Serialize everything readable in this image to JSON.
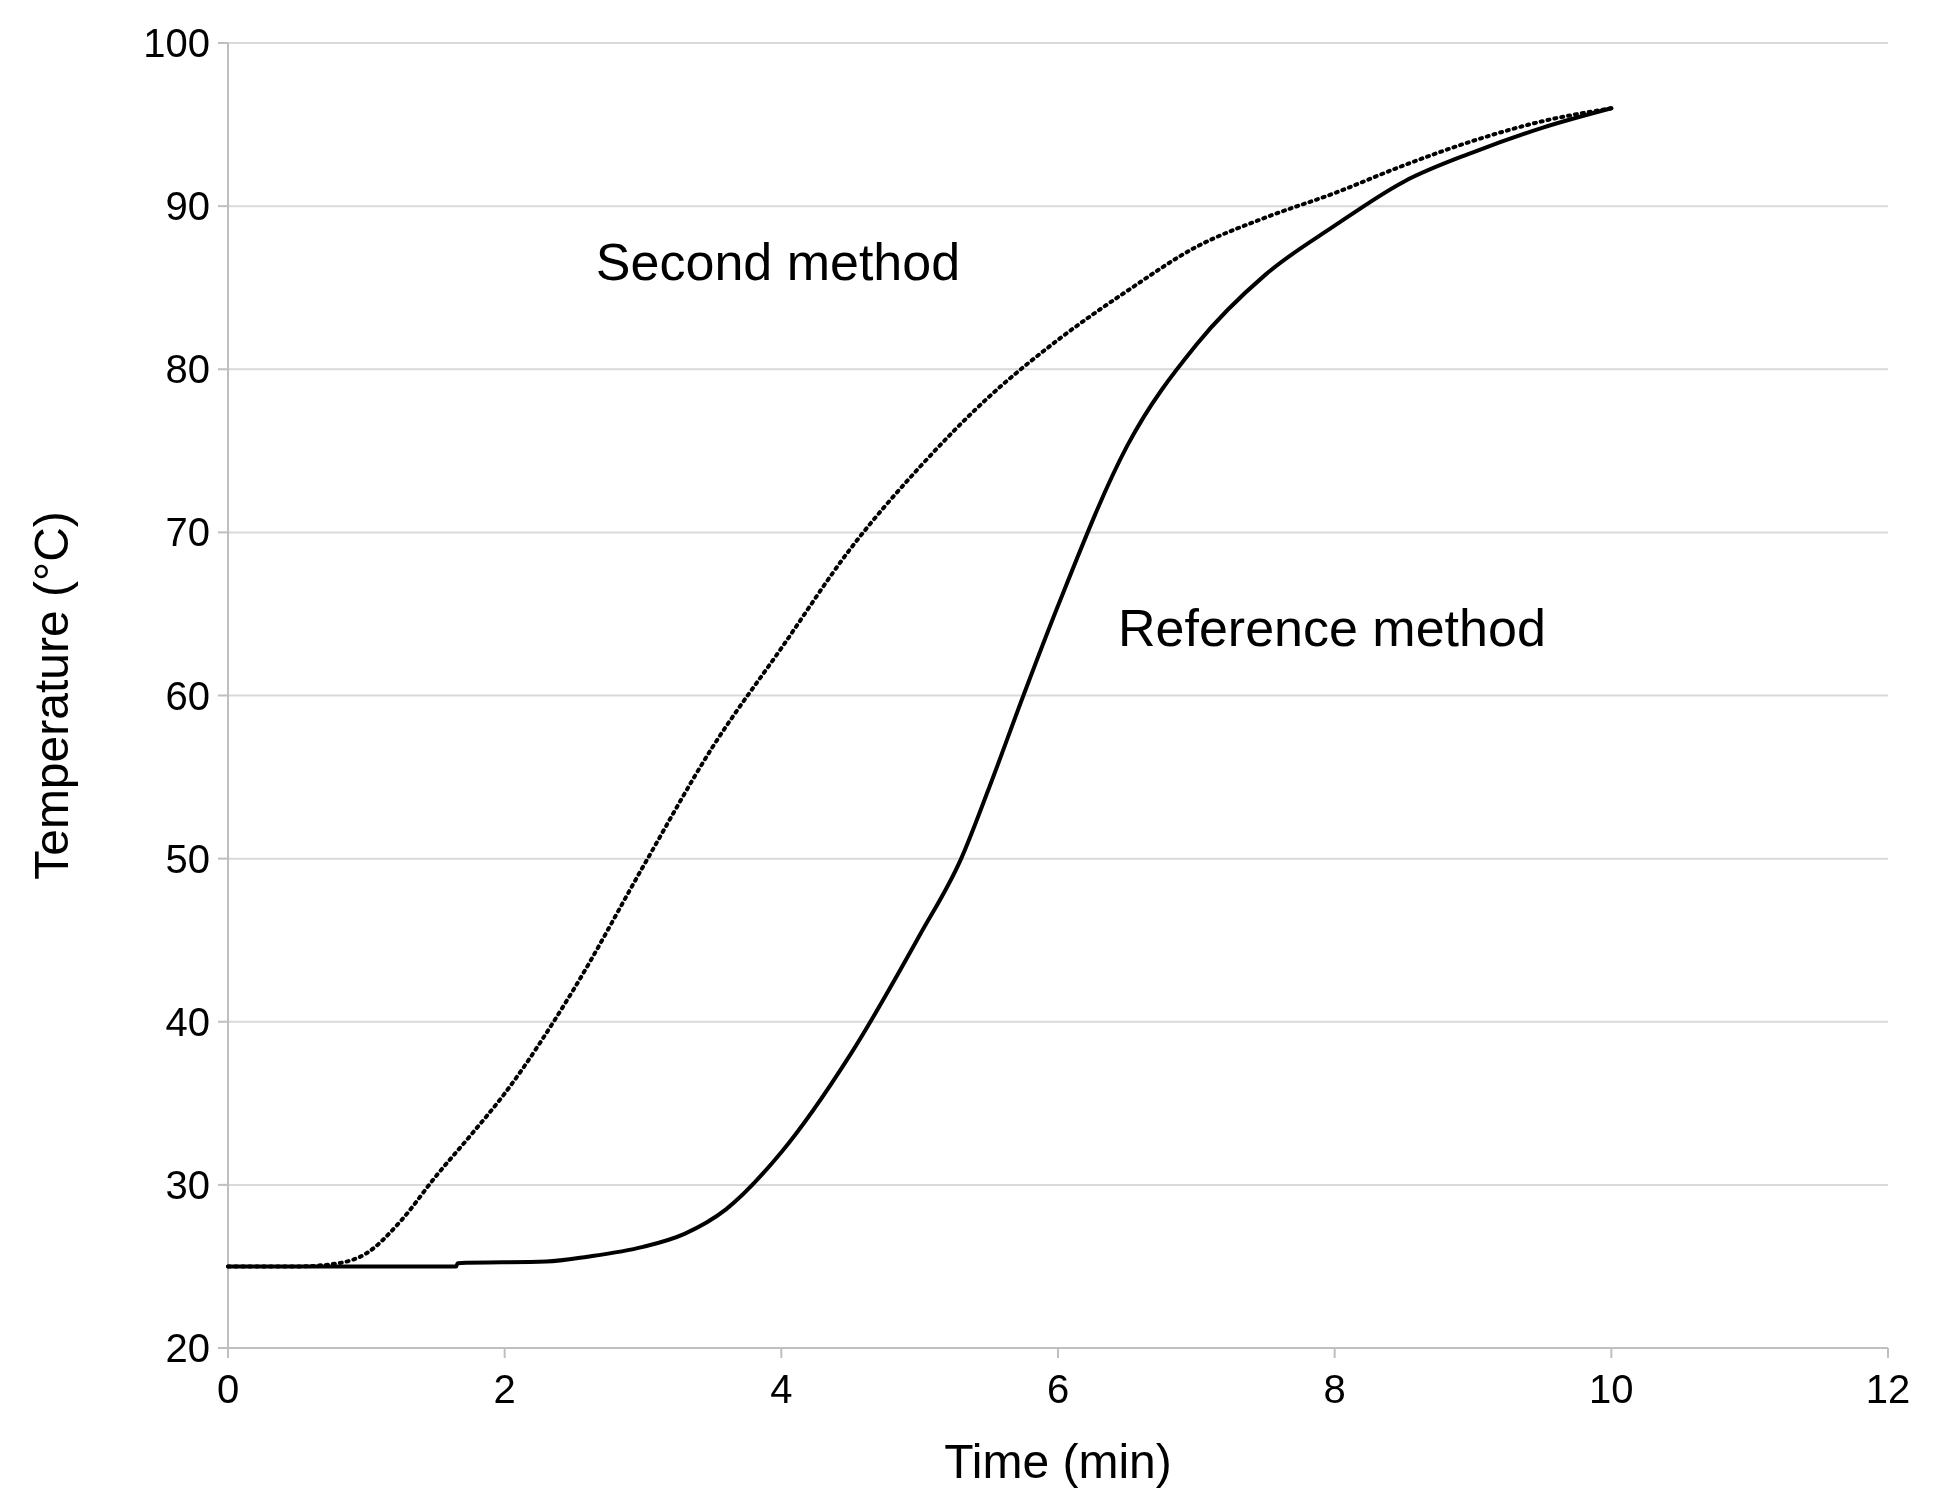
{
  "chart_data": {
    "type": "line",
    "xlabel": "Time (min)",
    "ylabel": "Temperature (°C)",
    "xlim": [
      0,
      12
    ],
    "xticks": [
      0,
      2,
      4,
      6,
      8,
      10,
      12
    ],
    "ylim": [
      20,
      100
    ],
    "yticks": [
      20,
      30,
      40,
      50,
      60,
      70,
      80,
      90,
      100
    ],
    "grid": "y",
    "series": [
      {
        "name": "Second method",
        "color": "#000000",
        "line_style": "dotted",
        "x": [
          0,
          0.5,
          0.8,
          1,
          1.25,
          1.5,
          1.75,
          2,
          2.5,
          3,
          3.5,
          4,
          4.5,
          5,
          5.5,
          6,
          6.5,
          7,
          7.5,
          8,
          8.5,
          9,
          9.5,
          10
        ],
        "values": [
          25,
          25,
          25.2,
          25.8,
          27.8,
          30.5,
          33,
          35.6,
          42,
          49.5,
          56.8,
          62.9,
          69,
          74,
          78.3,
          81.8,
          84.8,
          87.5,
          89.3,
          90.8,
          92.5,
          94,
          95.2,
          96
        ]
      },
      {
        "name": "Reference method",
        "color": "#000000",
        "line_style": "solid",
        "x": [
          0,
          1.65,
          1.66,
          2.3,
          2.6,
          3,
          3.3,
          3.6,
          4,
          4.5,
          5,
          5.3,
          5.5,
          5.75,
          6,
          6.5,
          7,
          7.5,
          8,
          8.5,
          9,
          9.5,
          10
        ],
        "values": [
          25,
          25,
          25.2,
          25.3,
          25.6,
          26.2,
          27,
          28.5,
          32,
          38,
          45.3,
          50,
          54.3,
          60,
          65.5,
          75.3,
          81.5,
          85.8,
          88.8,
          91.5,
          93.3,
          94.8,
          96
        ]
      }
    ]
  }
}
